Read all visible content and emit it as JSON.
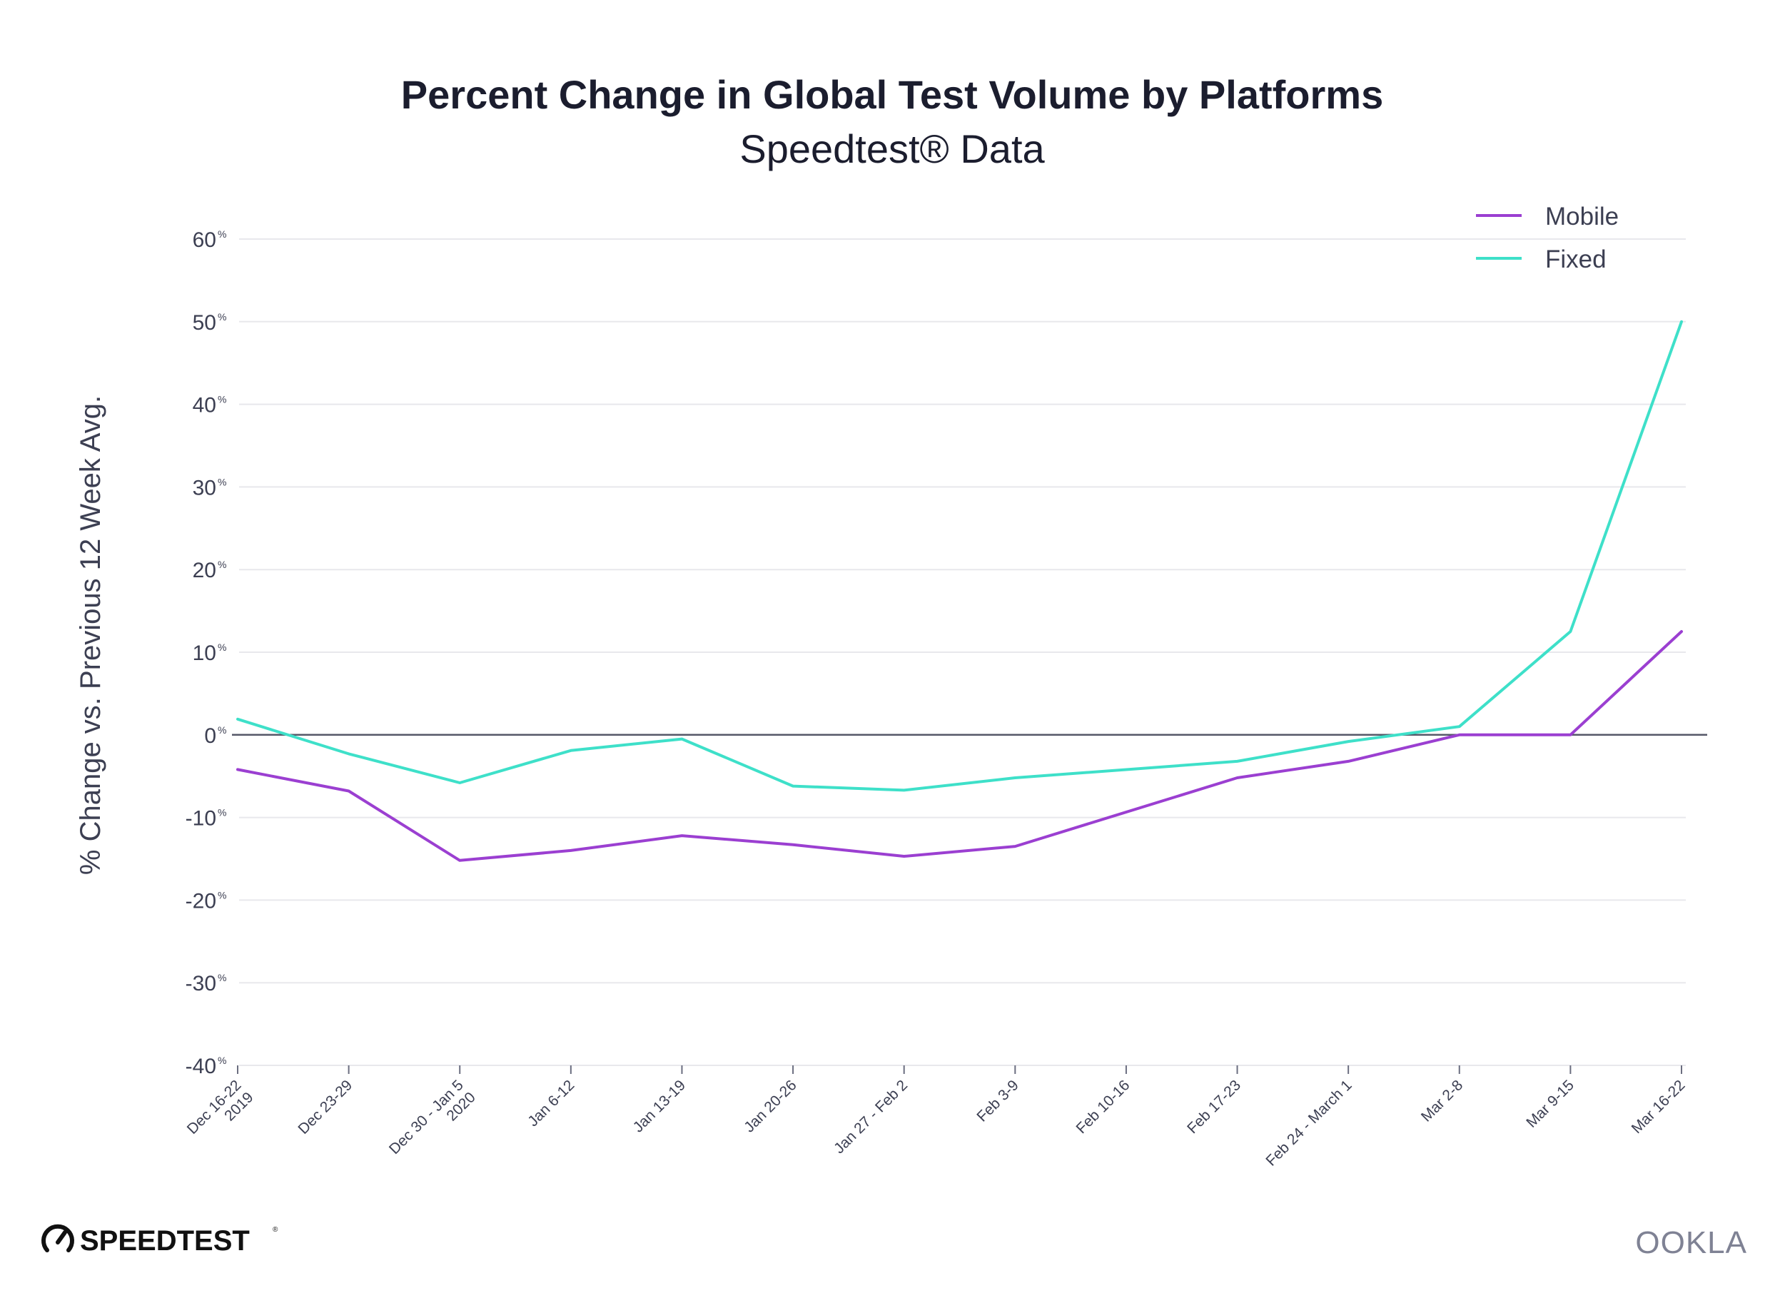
{
  "chart_data": {
    "type": "line",
    "title": "Percent Change in Global Test Volume by Platforms",
    "subtitle": "Speedtest® Data",
    "ylabel": "% Change vs. Previous 12 Week Avg.",
    "xlabel": "",
    "ylim": [
      -40,
      60
    ],
    "yticks": [
      60,
      50,
      40,
      30,
      20,
      10,
      0,
      -10,
      -20,
      -30,
      -40
    ],
    "ytick_labels": [
      "60",
      "50",
      "40",
      "30",
      "20",
      "10",
      "0",
      "-10",
      "-20",
      "-30",
      "-40"
    ],
    "ytick_suffix": "%",
    "grid": true,
    "legend_position": "top-right",
    "categories": [
      [
        "Dec 16-22",
        "2019"
      ],
      [
        "Dec 23-29"
      ],
      [
        "Dec 30 - Jan 5",
        "2020"
      ],
      [
        "Jan 6-12"
      ],
      [
        "Jan 13-19"
      ],
      [
        "Jan 20-26"
      ],
      [
        "Jan 27 - Feb 2"
      ],
      [
        "Feb 3-9"
      ],
      [
        "Feb 10-16"
      ],
      [
        "Feb 17-23"
      ],
      [
        "Feb 24 - March 1"
      ],
      [
        "Mar 2-8"
      ],
      [
        "Mar 9-15"
      ],
      [
        "Mar 16-22"
      ]
    ],
    "series": [
      {
        "name": "Mobile",
        "color": "#9b3fd1",
        "values": [
          -4.2,
          -6.8,
          -15.2,
          -14.0,
          -12.2,
          -13.3,
          -14.7,
          -13.5,
          null,
          -5.2,
          -3.2,
          0.0,
          0.0,
          12.5
        ]
      },
      {
        "name": "Fixed",
        "color": "#3ee0c9",
        "values": [
          1.9,
          -2.3,
          -5.8,
          -1.9,
          -0.5,
          -6.2,
          -6.7,
          -5.2,
          null,
          -3.2,
          -0.8,
          1.0,
          12.5,
          50.0
        ]
      }
    ]
  },
  "branding": {
    "speedtest": "SPEEDTEST",
    "speedtest_mark": "®",
    "ookla": "OOKLA"
  },
  "icons": {
    "speedtest_logo": "speedometer-icon"
  },
  "colors": {
    "gridline": "#e8e8ec",
    "zero_line": "#555868",
    "text": "#3c3f52"
  }
}
